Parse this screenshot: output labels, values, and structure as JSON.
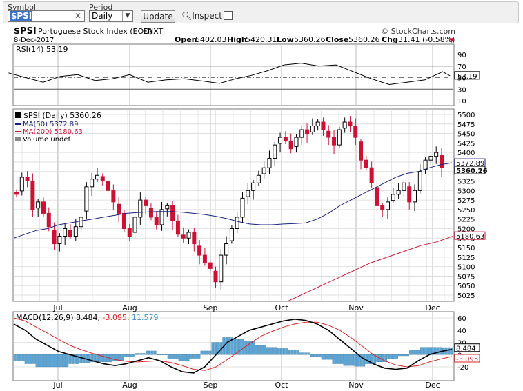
{
  "toolbar": {
    "symbol_label": "Symbol",
    "symbol_value": "$PSI",
    "period_label": "Period",
    "period_value": "Daily",
    "update_label": "Update",
    "inspect_label": "Inspect"
  },
  "header": {
    "symbol": "$PSI",
    "name": "Portuguese Stock Index (EOD)",
    "exchange": "ENXT",
    "date": "8-Dec-2017",
    "source": "© StockCharts.com",
    "open_label": "Open",
    "open": "5402.03",
    "high_label": "High",
    "high": "5420.31",
    "low_label": "Low",
    "low": "5360.26",
    "close_label": "Close",
    "close": "5360.26",
    "chg_label": "Chg",
    "chg": "-31.41 (-0.58%)"
  },
  "colors": {
    "up": "#000000",
    "down": "#cc1133",
    "ma50": "#1a237e",
    "ma200": "#cc1133",
    "macd_hist": "#5ba6d6",
    "signal": "#dd2222",
    "grid": "#d8d8d8"
  },
  "chart_data": [
    {
      "type": "line",
      "title": "RSI(14) 53.19",
      "ylim": [
        0,
        100
      ],
      "yticks": [
        10,
        30,
        50,
        70,
        90
      ],
      "grid": true,
      "x": [
        "2017-06-13",
        "2017-06-20",
        "2017-06-27",
        "2017-07-04",
        "2017-07-11",
        "2017-07-18",
        "2017-07-25",
        "2017-08-01",
        "2017-08-08",
        "2017-08-15",
        "2017-08-22",
        "2017-08-29",
        "2017-09-05",
        "2017-09-12",
        "2017-09-19",
        "2017-09-26",
        "2017-10-03",
        "2017-10-10",
        "2017-10-17",
        "2017-10-24",
        "2017-10-31",
        "2017-11-07",
        "2017-11-14",
        "2017-11-21",
        "2017-11-28",
        "2017-12-05",
        "2017-12-08"
      ],
      "series": [
        {
          "name": "RSI(14)",
          "values": [
            58,
            50,
            42,
            52,
            55,
            45,
            48,
            55,
            42,
            46,
            48,
            44,
            40,
            48,
            54,
            62,
            72,
            75,
            70,
            72,
            60,
            48,
            38,
            42,
            46,
            60,
            53.19
          ]
        }
      ],
      "last_label": "53.19"
    },
    {
      "type": "candlestick",
      "title": "$PSI (Daily) 5360.26",
      "ylim": [
        5000,
        5510
      ],
      "yticks": [
        5025,
        5050,
        5075,
        5100,
        5125,
        5150,
        5175,
        5200,
        5225,
        5250,
        5275,
        5300,
        5325,
        5350,
        5375,
        5400,
        5425,
        5450,
        5475,
        5500
      ],
      "legend": [
        "$PSI (Daily) 5360.26",
        "MA(50) 5372.89",
        "MA(200) 5180.63",
        "Volume undef"
      ],
      "xlabels": [
        {
          "label": "Jul",
          "date": "2017-07-03"
        },
        {
          "label": "Aug",
          "date": "2017-08-01"
        },
        {
          "label": "Sep",
          "date": "2017-09-01"
        },
        {
          "label": "Oct",
          "date": "2017-10-02"
        },
        {
          "label": "Nov",
          "date": "2017-11-01"
        },
        {
          "label": "Dec",
          "date": "2017-12-01"
        }
      ],
      "close": [
        5290,
        5335,
        5325,
        5250,
        5270,
        5240,
        5205,
        5160,
        5180,
        5200,
        5180,
        5205,
        5230,
        5310,
        5330,
        5340,
        5325,
        5300,
        5270,
        5240,
        5200,
        5180,
        5230,
        5275,
        5260,
        5230,
        5210,
        5250,
        5260,
        5220,
        5185,
        5175,
        5190,
        5160,
        5130,
        5110,
        5095,
        5060,
        5130,
        5160,
        5200,
        5230,
        5280,
        5300,
        5320,
        5340,
        5360,
        5385,
        5420,
        5440,
        5430,
        5410,
        5440,
        5460,
        5450,
        5470,
        5480,
        5460,
        5440,
        5420,
        5460,
        5480,
        5470,
        5440,
        5380,
        5360,
        5320,
        5260,
        5250,
        5270,
        5290,
        5300,
        5320,
        5270,
        5300,
        5350,
        5380,
        5390,
        5400,
        5360.26
      ],
      "ma50": [
        5175,
        5185,
        5195,
        5200,
        5210,
        5215,
        5220,
        5225,
        5230,
        5235,
        5240,
        5242,
        5244,
        5245,
        5245,
        5243,
        5240,
        5237,
        5232,
        5226,
        5218,
        5212,
        5210,
        5210,
        5212,
        5213,
        5215,
        5225,
        5240,
        5260,
        5275,
        5290,
        5305,
        5320,
        5335,
        5345,
        5350,
        5360,
        5368,
        5372.89
      ],
      "ma200": [
        5010,
        5030,
        5050,
        5070,
        5090,
        5110,
        5125,
        5140,
        5155,
        5165,
        5180.63
      ],
      "last_labels": {
        "close": "5360.26",
        "ma50": "5372.89",
        "ma200": "5180.63"
      }
    },
    {
      "type": "line",
      "title": "MACD(12,26,9) 8.484, -3.095, 11.579",
      "ylim": [
        -25,
        65
      ],
      "yticks": [
        -20,
        0,
        20,
        40,
        60
      ],
      "grid": true,
      "series": [
        {
          "name": "MACD(12,26,9)",
          "values": [
            50,
            40,
            25,
            15,
            5,
            0,
            -5,
            -10,
            -15,
            -18,
            -15,
            -10,
            -5,
            -10,
            -20,
            -28,
            -30,
            -20,
            0,
            20,
            30,
            40,
            45,
            50,
            55,
            58,
            56,
            50,
            40,
            25,
            10,
            -5,
            -15,
            -22,
            -24,
            -22,
            -10,
            0,
            5,
            8.484
          ]
        },
        {
          "name": "Signal",
          "values": [
            60,
            55,
            45,
            35,
            25,
            15,
            8,
            2,
            -3,
            -8,
            -11,
            -12,
            -11,
            -10,
            -13,
            -18,
            -24,
            -26,
            -20,
            -8,
            5,
            18,
            30,
            38,
            45,
            50,
            53,
            53,
            48,
            40,
            28,
            14,
            0,
            -10,
            -17,
            -20,
            -18,
            -12,
            -7,
            -3.095
          ]
        },
        {
          "name": "Histogram",
          "values": [
            -10,
            -15,
            -20,
            -20,
            -20,
            -15,
            -13,
            -12,
            -12,
            -10,
            -4,
            2,
            6,
            0,
            -7,
            -10,
            -6,
            6,
            20,
            28,
            25,
            22,
            15,
            12,
            10,
            8,
            3,
            -3,
            -8,
            -15,
            -18,
            -19,
            -15,
            -12,
            -7,
            -2,
            8,
            12,
            12,
            11.579
          ]
        }
      ],
      "last_labels": {
        "macd": "8.484",
        "signal": "-3.095"
      }
    }
  ]
}
